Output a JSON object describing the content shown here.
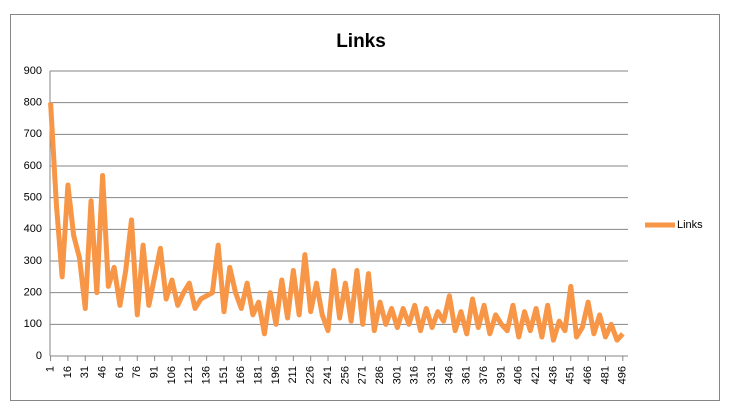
{
  "chart_data": {
    "type": "line",
    "title": "Links",
    "x": [
      1,
      6,
      11,
      16,
      21,
      26,
      31,
      36,
      41,
      46,
      51,
      56,
      61,
      66,
      71,
      76,
      81,
      86,
      91,
      96,
      101,
      106,
      111,
      116,
      121,
      126,
      131,
      136,
      141,
      146,
      151,
      156,
      161,
      166,
      171,
      176,
      181,
      186,
      191,
      196,
      201,
      206,
      211,
      216,
      221,
      226,
      231,
      236,
      241,
      246,
      251,
      256,
      261,
      266,
      271,
      276,
      281,
      286,
      291,
      296,
      301,
      306,
      311,
      316,
      321,
      326,
      331,
      336,
      341,
      346,
      351,
      356,
      361,
      366,
      371,
      376,
      381,
      386,
      391,
      396,
      401,
      406,
      411,
      416,
      421,
      426,
      431,
      436,
      441,
      446,
      451,
      456,
      461,
      466,
      471,
      476,
      481,
      486,
      491,
      496
    ],
    "series": [
      {
        "name": "Links",
        "color": "#f79646",
        "values": [
          800,
          480,
          250,
          540,
          380,
          310,
          150,
          490,
          200,
          570,
          220,
          280,
          160,
          270,
          430,
          130,
          350,
          160,
          250,
          340,
          180,
          240,
          160,
          200,
          230,
          150,
          180,
          190,
          200,
          350,
          140,
          280,
          200,
          150,
          230,
          130,
          170,
          70,
          200,
          100,
          240,
          120,
          270,
          130,
          320,
          140,
          230,
          130,
          80,
          270,
          120,
          230,
          110,
          270,
          100,
          260,
          80,
          170,
          100,
          150,
          90,
          150,
          100,
          160,
          80,
          150,
          90,
          140,
          110,
          190,
          80,
          140,
          70,
          180,
          90,
          160,
          70,
          130,
          100,
          80,
          160,
          60,
          140,
          80,
          150,
          60,
          160,
          50,
          110,
          80,
          220,
          60,
          90,
          170,
          70,
          130,
          60,
          100,
          50,
          70
        ]
      }
    ],
    "xlim": [
      0.5,
      500.5
    ],
    "xticks": [
      1,
      16,
      31,
      46,
      61,
      76,
      91,
      106,
      121,
      136,
      151,
      166,
      181,
      196,
      211,
      226,
      241,
      256,
      271,
      286,
      301,
      316,
      331,
      346,
      361,
      376,
      391,
      406,
      421,
      436,
      451,
      466,
      481,
      496
    ],
    "ylim": [
      0,
      900
    ],
    "yticks": [
      0,
      100,
      200,
      300,
      400,
      500,
      600,
      700,
      800,
      900
    ],
    "grid": true,
    "legend": "right"
  }
}
